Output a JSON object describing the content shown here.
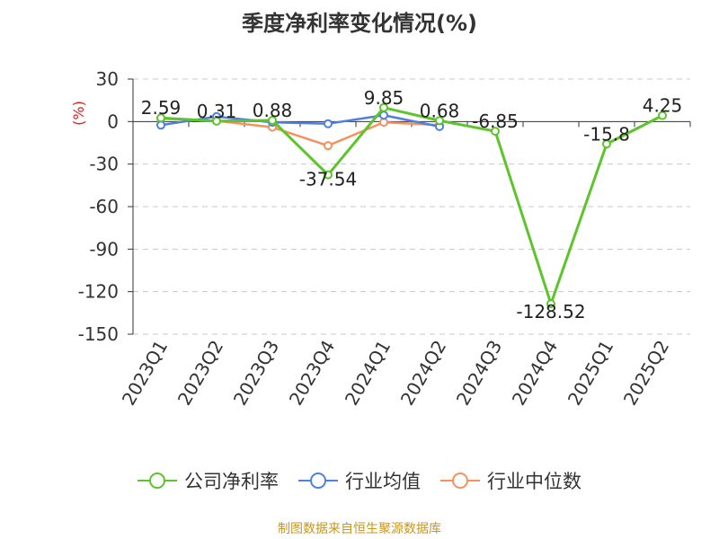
{
  "title": "季度净利率变化情况(%)",
  "source": "制图数据来自恒生聚源数据库",
  "chart_data": {
    "type": "line",
    "title": "季度净利率变化情况(%)",
    "xlabel": "",
    "ylabel": "(%)",
    "ylim": [
      -150,
      30
    ],
    "yticks": [
      30,
      0,
      -30,
      -60,
      -90,
      -120,
      -150
    ],
    "grid": true,
    "legend_position": "bottom",
    "categories": [
      "2023Q1",
      "2023Q2",
      "2023Q3",
      "2023Q4",
      "2024Q1",
      "2024Q2",
      "2024Q3",
      "2024Q4",
      "2025Q1",
      "2025Q2"
    ],
    "series": [
      {
        "name": "公司净利率",
        "color": "#5dc42b",
        "values": [
          2.59,
          0.31,
          0.88,
          -37.54,
          9.85,
          0.68,
          -6.85,
          -128.52,
          -15.8,
          4.25
        ],
        "labels": [
          "2.59",
          "0.31",
          "0.88",
          "-37.54",
          "9.85",
          "0.68",
          "-6.85",
          "-128.52",
          "-15.8",
          "4.25"
        ]
      },
      {
        "name": "行业均值",
        "color": "#4f7fe0",
        "values": [
          -2.5,
          3.5,
          -0.5,
          -1.5,
          4.5,
          -3.5,
          null,
          null,
          null,
          null
        ]
      },
      {
        "name": "行业中位数",
        "color": "#f4915e",
        "values": [
          2.0,
          0.5,
          -4.0,
          -17.0,
          -0.5,
          -2.5,
          null,
          null,
          null,
          null
        ]
      }
    ]
  }
}
